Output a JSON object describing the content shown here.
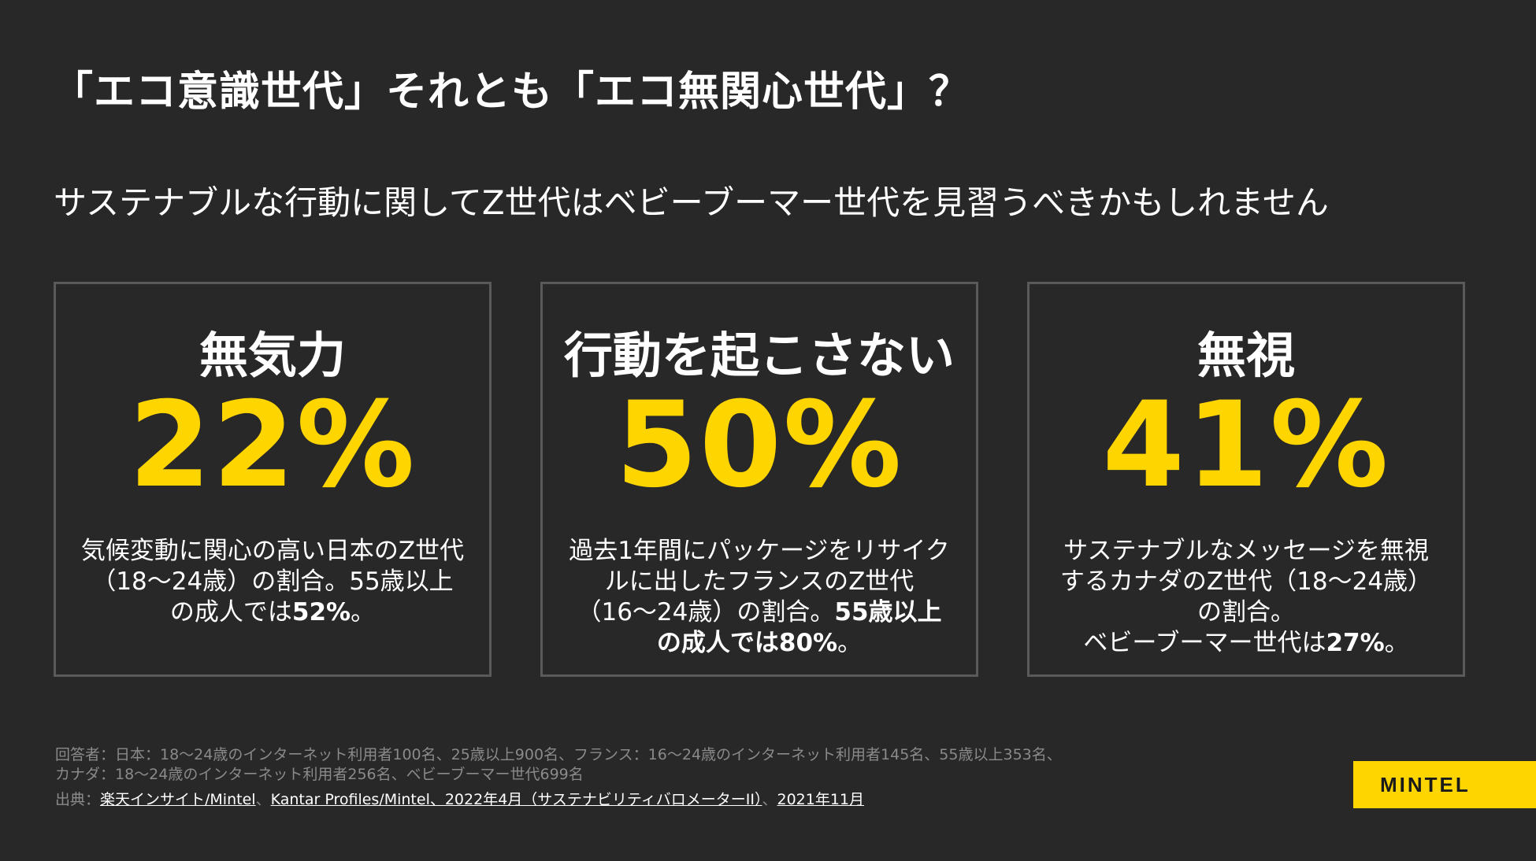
{
  "title": "「エコ意識世代」それとも「エコ無関心世代」？",
  "subtitle": "サステナブルな行動に関してZ世代はベビーブーマー世代を見習うべきかもしれません",
  "cards": [
    {
      "label": "無気力",
      "stat": "22%",
      "desc_text": "気候変動に関心の高い日本のZ世代（18〜24歳）の割合。55歳以上の成人では",
      "desc_bold": "52%",
      "desc_tail": "。"
    },
    {
      "label": "行動を起こさない",
      "stat": "50%",
      "desc_text": "過去1年間にパッケージをリサイクルに出したフランスのZ世代（16〜24歳）の割合。",
      "desc_bold": "55歳以上の成人では80%",
      "desc_tail": "。"
    },
    {
      "label": "無視",
      "stat": "41%",
      "desc_text": "サステナブルなメッセージを無視するカナダのZ世代（18〜24歳）の割合。",
      "desc_line2": "ベビーブーマー世代は",
      "desc_bold": "27%",
      "desc_tail": "。"
    }
  ],
  "footnotes": {
    "line1": "回答者：日本：18〜24歳のインターネット利用者100名、25歳以上900名、フランス：16〜24歳のインターネット利用者145名、55歳以上353名、",
    "line2": "カナダ：18〜24歳のインターネット利用者256名、ベビーブーマー世代699名",
    "source_prefix": "出典：",
    "source_link_1": "楽天インサイト/Mintel",
    "sep_1": "、",
    "source_link_2": "Kantar Profiles/Mintel、2022年4月（サステナビリティバロメーターII）",
    "sep_2": "、",
    "source_link_3": "2021年11月"
  },
  "logo": {
    "text": "MINTEL"
  },
  "colors": {
    "background": "#282828",
    "accent": "#ffd500",
    "card_border": "#5a5a5a",
    "footnote": "#8a8a8a"
  }
}
